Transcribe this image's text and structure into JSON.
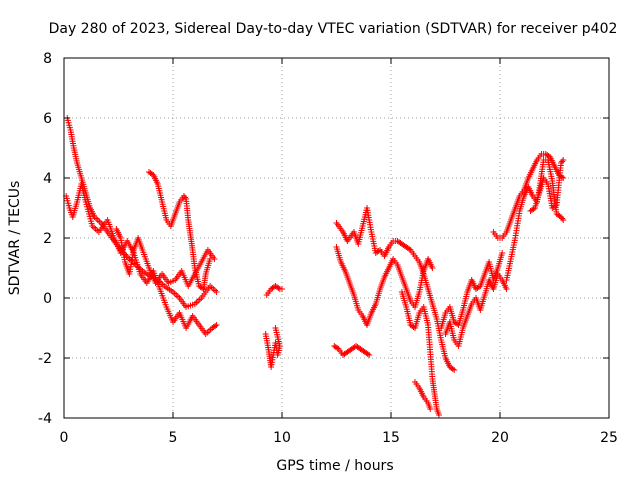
{
  "chart_data": {
    "type": "scatter",
    "title": "Day 280 of 2023, Sidereal Day-to-day VTEC variation (SDTVAR) for receiver p402",
    "xlabel": "GPS time / hours",
    "ylabel": "SDTVAR / TECUs",
    "xlim": [
      0,
      25
    ],
    "ylim": [
      -4,
      8
    ],
    "xticks": [
      "0",
      "5",
      "10",
      "15",
      "20",
      "25"
    ],
    "yticks": [
      "-4",
      "-2",
      "0",
      "2",
      "4",
      "6",
      "8"
    ],
    "grid": true,
    "marker": "+",
    "series": [
      {
        "name": "SDTVAR",
        "color": "#ff0000",
        "segments": [
          [
            [
              0.15,
              6.0
            ],
            [
              0.3,
              5.6
            ],
            [
              0.45,
              5.0
            ],
            [
              0.6,
              4.5
            ],
            [
              0.8,
              4.0
            ],
            [
              1.0,
              3.5
            ],
            [
              1.2,
              3.0
            ],
            [
              1.4,
              2.7
            ],
            [
              1.7,
              2.5
            ],
            [
              2.0,
              2.2
            ],
            [
              2.3,
              1.9
            ],
            [
              2.6,
              1.6
            ],
            [
              3.0,
              1.3
            ],
            [
              3.3,
              1.1
            ],
            [
              3.6,
              0.9
            ],
            [
              4.0,
              0.7
            ],
            [
              4.3,
              0.6
            ],
            [
              4.6,
              0.4
            ],
            [
              5.0,
              0.2
            ],
            [
              5.3,
              0.0
            ],
            [
              5.6,
              -0.3
            ],
            [
              6.0,
              -0.2
            ],
            [
              6.3,
              0.0
            ],
            [
              6.7,
              0.4
            ],
            [
              7.0,
              0.2
            ]
          ],
          [
            [
              0.1,
              3.4
            ],
            [
              0.25,
              3.0
            ],
            [
              0.4,
              2.7
            ],
            [
              0.6,
              3.2
            ],
            [
              0.8,
              3.8
            ],
            [
              1.0,
              3.2
            ],
            [
              1.3,
              2.4
            ],
            [
              1.6,
              2.2
            ],
            [
              2.0,
              2.6
            ],
            [
              2.3,
              2.0
            ],
            [
              2.6,
              1.5
            ],
            [
              2.9,
              1.9
            ],
            [
              3.2,
              1.5
            ],
            [
              3.5,
              0.8
            ],
            [
              3.8,
              0.5
            ],
            [
              4.1,
              0.9
            ],
            [
              4.4,
              0.3
            ],
            [
              4.7,
              -0.3
            ],
            [
              5.0,
              -0.8
            ],
            [
              5.3,
              -0.5
            ],
            [
              5.6,
              -1.0
            ],
            [
              5.9,
              -0.6
            ],
            [
              6.2,
              -0.9
            ],
            [
              6.5,
              -1.2
            ],
            [
              6.8,
              -1.0
            ],
            [
              7.0,
              -0.9
            ]
          ],
          [
            [
              2.4,
              2.3
            ],
            [
              2.6,
              2.0
            ],
            [
              2.8,
              1.2
            ],
            [
              3.0,
              0.8
            ],
            [
              3.2,
              1.6
            ],
            [
              3.4,
              2.0
            ],
            [
              3.6,
              1.6
            ],
            [
              3.9,
              1.0
            ],
            [
              4.2,
              0.5
            ],
            [
              4.5,
              0.8
            ],
            [
              4.8,
              0.5
            ],
            [
              5.1,
              0.6
            ],
            [
              5.4,
              0.9
            ],
            [
              5.7,
              0.4
            ],
            [
              6.0,
              0.8
            ],
            [
              6.3,
              1.2
            ],
            [
              6.6,
              1.6
            ],
            [
              6.9,
              1.3
            ]
          ],
          [
            [
              3.9,
              4.2
            ],
            [
              4.1,
              4.1
            ],
            [
              4.3,
              3.8
            ],
            [
              4.5,
              3.2
            ],
            [
              4.7,
              2.6
            ],
            [
              4.9,
              2.4
            ],
            [
              5.1,
              2.8
            ],
            [
              5.3,
              3.2
            ],
            [
              5.5,
              3.4
            ],
            [
              5.6,
              3.3
            ],
            [
              5.7,
              2.6
            ],
            [
              5.8,
              2.1
            ],
            [
              5.9,
              1.6
            ],
            [
              6.0,
              1.0
            ],
            [
              6.2,
              0.4
            ],
            [
              6.4,
              0.3
            ],
            [
              6.5,
              0.8
            ],
            [
              6.7,
              1.3
            ]
          ],
          [
            [
              9.25,
              -1.2
            ],
            [
              9.4,
              -1.8
            ],
            [
              9.5,
              -2.3
            ],
            [
              9.6,
              -1.9
            ],
            [
              9.7,
              -1.5
            ],
            [
              9.8,
              -1.9
            ],
            [
              9.9,
              -1.6
            ],
            [
              9.7,
              -1.0
            ]
          ],
          [
            [
              9.3,
              0.1
            ],
            [
              9.5,
              0.3
            ],
            [
              9.7,
              0.4
            ],
            [
              9.9,
              0.3
            ],
            [
              10.0,
              0.3
            ]
          ],
          [
            [
              12.5,
              1.7
            ],
            [
              12.7,
              1.2
            ],
            [
              12.9,
              0.9
            ],
            [
              13.1,
              0.5
            ],
            [
              13.3,
              0.1
            ],
            [
              13.5,
              -0.4
            ],
            [
              13.7,
              -0.6
            ],
            [
              13.9,
              -0.9
            ],
            [
              14.1,
              -0.5
            ],
            [
              14.3,
              -0.2
            ],
            [
              14.5,
              0.3
            ],
            [
              14.7,
              0.7
            ],
            [
              14.9,
              1.0
            ],
            [
              15.1,
              1.3
            ],
            [
              15.3,
              1.1
            ],
            [
              15.5,
              0.7
            ],
            [
              15.7,
              0.3
            ],
            [
              15.9,
              -0.1
            ],
            [
              16.1,
              -0.3
            ],
            [
              16.3,
              0.2
            ],
            [
              16.5,
              0.9
            ],
            [
              16.7,
              1.3
            ],
            [
              16.9,
              1.0
            ]
          ],
          [
            [
              12.5,
              2.5
            ],
            [
              12.8,
              2.2
            ],
            [
              13.0,
              1.9
            ],
            [
              13.3,
              2.2
            ],
            [
              13.5,
              1.8
            ],
            [
              13.7,
              2.4
            ],
            [
              13.9,
              3.0
            ],
            [
              14.1,
              2.2
            ],
            [
              14.3,
              1.5
            ],
            [
              14.5,
              1.6
            ],
            [
              14.7,
              1.4
            ],
            [
              14.9,
              1.7
            ],
            [
              15.1,
              1.9
            ],
            [
              15.3,
              1.9
            ],
            [
              15.5,
              1.8
            ],
            [
              15.7,
              1.7
            ],
            [
              15.9,
              1.6
            ],
            [
              16.1,
              1.4
            ],
            [
              16.3,
              1.2
            ],
            [
              16.5,
              0.8
            ],
            [
              16.7,
              0.3
            ],
            [
              16.9,
              -0.2
            ],
            [
              17.1,
              -0.7
            ],
            [
              17.3,
              -1.4
            ],
            [
              17.5,
              -2.0
            ],
            [
              17.7,
              -2.3
            ],
            [
              17.9,
              -2.4
            ]
          ],
          [
            [
              12.4,
              -1.6
            ],
            [
              12.6,
              -1.7
            ],
            [
              12.8,
              -1.9
            ],
            [
              13.0,
              -1.8
            ],
            [
              13.2,
              -1.7
            ],
            [
              13.4,
              -1.6
            ],
            [
              13.6,
              -1.7
            ],
            [
              13.8,
              -1.8
            ],
            [
              14.0,
              -1.9
            ]
          ],
          [
            [
              15.5,
              0.2
            ],
            [
              15.7,
              -0.3
            ],
            [
              15.9,
              -0.9
            ],
            [
              16.1,
              -1.0
            ],
            [
              16.3,
              -0.5
            ],
            [
              16.5,
              -0.3
            ],
            [
              16.7,
              -0.9
            ],
            [
              16.8,
              -1.8
            ],
            [
              16.9,
              -2.7
            ],
            [
              17.0,
              -3.2
            ],
            [
              17.1,
              -3.7
            ],
            [
              17.2,
              -3.9
            ]
          ],
          [
            [
              16.1,
              -2.8
            ],
            [
              16.3,
              -3.0
            ],
            [
              16.5,
              -3.3
            ],
            [
              16.7,
              -3.5
            ],
            [
              16.8,
              -3.7
            ]
          ],
          [
            [
              17.5,
              -1.2
            ],
            [
              17.7,
              -0.8
            ],
            [
              17.9,
              -1.4
            ],
            [
              18.1,
              -1.6
            ],
            [
              18.3,
              -1.0
            ],
            [
              18.5,
              -0.6
            ],
            [
              18.7,
              -0.2
            ],
            [
              18.9,
              0.0
            ],
            [
              19.1,
              -0.4
            ],
            [
              19.3,
              0.1
            ],
            [
              19.5,
              0.6
            ],
            [
              19.7,
              0.3
            ],
            [
              19.9,
              0.8
            ],
            [
              20.1,
              0.6
            ],
            [
              20.3,
              0.3
            ]
          ],
          [
            [
              17.3,
              -1.0
            ],
            [
              17.5,
              -0.5
            ],
            [
              17.7,
              -0.3
            ],
            [
              17.9,
              -0.8
            ],
            [
              18.1,
              -0.9
            ],
            [
              18.3,
              -0.4
            ],
            [
              18.5,
              0.2
            ],
            [
              18.7,
              0.6
            ],
            [
              18.9,
              0.3
            ],
            [
              19.1,
              0.4
            ],
            [
              19.3,
              0.8
            ],
            [
              19.5,
              1.2
            ],
            [
              19.7,
              0.6
            ],
            [
              19.9,
              1.0
            ],
            [
              20.1,
              1.5
            ]
          ],
          [
            [
              19.7,
              2.2
            ],
            [
              19.9,
              2.0
            ],
            [
              20.1,
              2.0
            ],
            [
              20.3,
              2.2
            ],
            [
              20.5,
              2.6
            ],
            [
              20.7,
              3.0
            ],
            [
              20.9,
              3.4
            ],
            [
              21.1,
              3.6
            ],
            [
              21.3,
              4.0
            ],
            [
              21.5,
              4.3
            ],
            [
              21.7,
              4.6
            ],
            [
              21.9,
              4.8
            ],
            [
              22.1,
              4.8
            ],
            [
              22.3,
              4.7
            ],
            [
              22.5,
              4.4
            ],
            [
              22.7,
              4.1
            ],
            [
              22.9,
              4.0
            ]
          ],
          [
            [
              20.3,
              0.6
            ],
            [
              20.5,
              1.3
            ],
            [
              20.7,
              2.0
            ],
            [
              20.9,
              2.9
            ],
            [
              21.1,
              3.4
            ],
            [
              21.3,
              3.7
            ],
            [
              21.5,
              3.4
            ],
            [
              21.7,
              3.2
            ],
            [
              21.8,
              3.6
            ],
            [
              22.0,
              4.6
            ],
            [
              22.2,
              4.6
            ],
            [
              22.4,
              3.9
            ],
            [
              22.5,
              3.3
            ],
            [
              22.6,
              2.8
            ],
            [
              22.8,
              2.7
            ],
            [
              22.9,
              2.6
            ]
          ],
          [
            [
              21.4,
              2.9
            ],
            [
              21.6,
              3.0
            ],
            [
              21.8,
              3.5
            ],
            [
              22.0,
              4.0
            ],
            [
              22.2,
              3.8
            ],
            [
              22.4,
              3.0
            ],
            [
              22.6,
              3.1
            ],
            [
              22.8,
              4.5
            ],
            [
              22.9,
              4.6
            ]
          ]
        ]
      }
    ]
  }
}
